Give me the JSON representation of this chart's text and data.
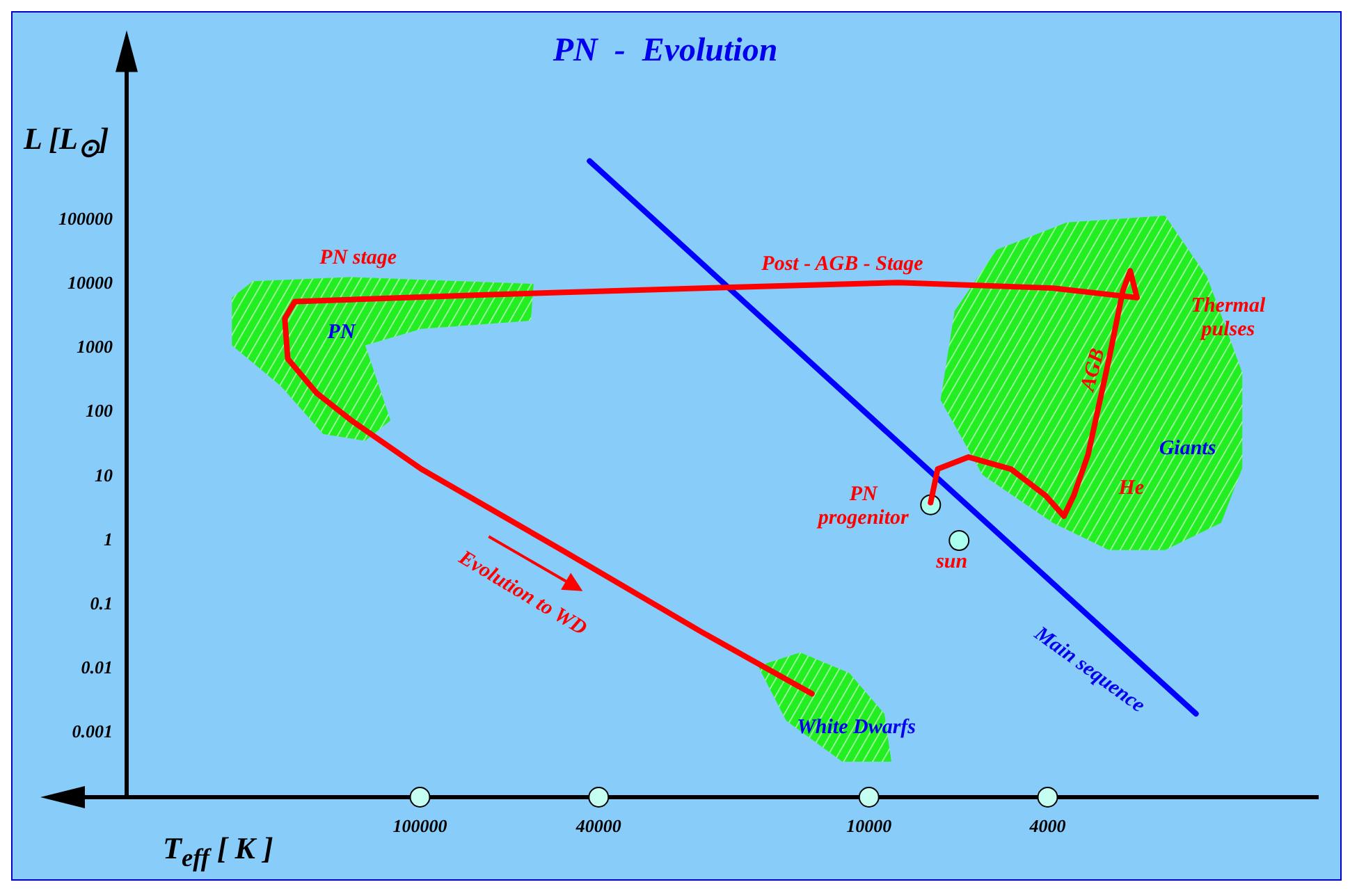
{
  "chart_data": {
    "type": "line",
    "title": "PN  -  Evolution",
    "xlabel": "T$_{eff}$  [ K ]",
    "ylabel": "L [L$_{⊙}$]",
    "log": "xy",
    "grid": false,
    "legend": false,
    "xlim": [
      450000,
      1000
    ],
    "ylim": [
      0.0001,
      20000000
    ],
    "xticks": [
      100000,
      40000,
      10000,
      4000
    ],
    "yticks": [
      0.001,
      0.01,
      0.1,
      1,
      10,
      100,
      1000,
      10000,
      100000
    ],
    "series": [
      {
        "color": "#ff0000",
        "x": [
          7290,
          7030,
          6000,
          4830,
          4040,
          3680,
          3500,
          3250,
          2920,
          2720,
          2620,
          2530,
          3900,
          8590,
          23500,
          69300,
          190000,
          200000,
          197000,
          170000,
          142000,
          99300,
          48300,
          23500,
          13400
        ],
        "values": [
          3.9,
          13,
          20,
          13,
          5,
          2.4,
          5,
          22,
          680,
          7800,
          16000,
          6100,
          8600,
          10500,
          8600,
          6800,
          5300,
          2900,
          680,
          200,
          74,
          13,
          0.71,
          0.037,
          0.0041
        ]
      },
      {
        "color": "#0000ff",
        "x": [
          41900,
          1870
        ],
        "values": [
          822000,
          0.002
        ]
      },
      {
        "type": "scatter",
        "marker": "circle",
        "color": "#aaffee",
        "x": [
          7290,
          6300
        ],
        "values": [
          3.6,
          1.0
        ]
      }
    ],
    "annotations": [
      "PN stage",
      "Post - AGB - Stage",
      "Thermal\npulses",
      "AGB",
      "He",
      "Giants",
      "PN",
      "White Dwarfs",
      "Main sequence",
      "Evolution to WD",
      "PN\nprogenitor",
      "sun"
    ]
  }
}
